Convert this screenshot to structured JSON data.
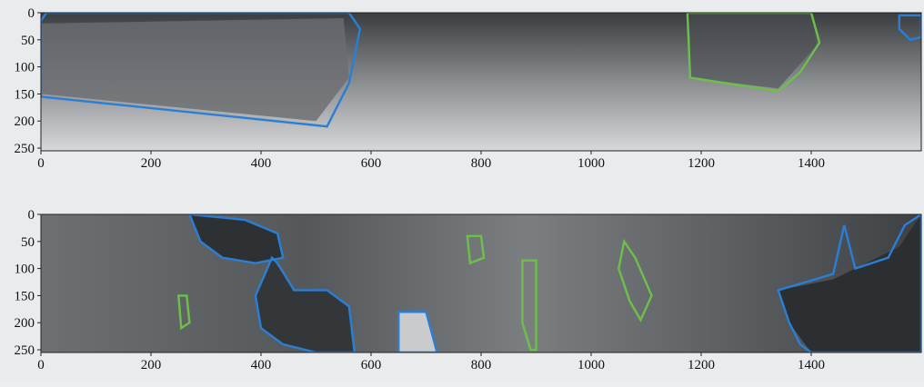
{
  "panels": [
    {
      "xlim": [
        0,
        1600
      ],
      "ylim": [
        0,
        255
      ],
      "xticks": [
        0,
        200,
        400,
        600,
        800,
        1000,
        1200,
        1400
      ],
      "yticks": [
        0,
        50,
        100,
        150,
        200,
        250
      ]
    },
    {
      "xlim": [
        0,
        1600
      ],
      "ylim": [
        0,
        255
      ],
      "xticks": [
        0,
        200,
        400,
        600,
        800,
        1000,
        1200,
        1400
      ],
      "yticks": [
        0,
        50,
        100,
        150,
        200,
        250
      ]
    }
  ]
}
